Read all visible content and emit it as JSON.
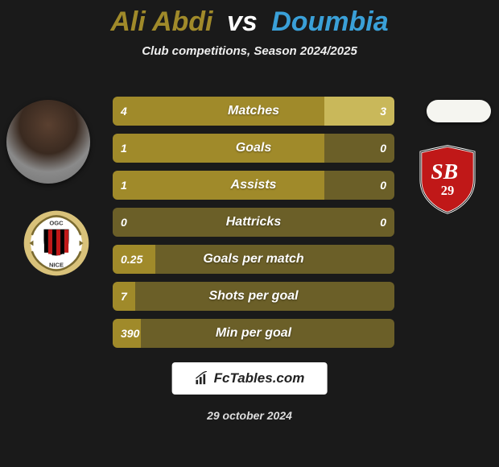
{
  "title": {
    "player1": "Ali Abdi",
    "vs": "vs",
    "player2": "Doumbia",
    "player1_color": "#a08a2a",
    "player2_color": "#3aa0d8"
  },
  "subtitle": "Club competitions, Season 2024/2025",
  "bars": {
    "left_color": "#a08a2a",
    "right_color": "#c9b85a",
    "left_empty_color": "#6b5f28",
    "right_empty_color": "#6b5f28",
    "height": 36,
    "gap": 10,
    "border_radius": 6,
    "label_fontsize": 16,
    "value_fontsize": 14,
    "rows": [
      {
        "label": "Matches",
        "left_val": "4",
        "right_val": "3",
        "left_frac": 0.75,
        "right_frac": 0.25
      },
      {
        "label": "Goals",
        "left_val": "1",
        "right_val": "0",
        "left_frac": 0.75,
        "right_frac": 0.0
      },
      {
        "label": "Assists",
        "left_val": "1",
        "right_val": "0",
        "left_frac": 0.75,
        "right_frac": 0.0
      },
      {
        "label": "Hattricks",
        "left_val": "0",
        "right_val": "0",
        "left_frac": 0.0,
        "right_frac": 0.0
      },
      {
        "label": "Goals per match",
        "left_val": "0.25",
        "right_val": "",
        "left_frac": 0.15,
        "right_frac": 0.0
      },
      {
        "label": "Shots per goal",
        "left_val": "7",
        "right_val": "",
        "left_frac": 0.08,
        "right_frac": 0.0
      },
      {
        "label": "Min per goal",
        "left_val": "390",
        "right_val": "",
        "left_frac": 0.1,
        "right_frac": 0.0
      }
    ]
  },
  "watermark": {
    "text": "FcTables.com"
  },
  "date": "29 october 2024",
  "crest_right": {
    "shield_color": "#c01818",
    "border_color": "#ffffff",
    "text": "SB",
    "sub": "29"
  },
  "crest_left": {
    "circle_outer": "#d9c27a",
    "circle_inner": "#ffffff",
    "text_top": "OGC",
    "text_bottom": "NICE",
    "stripes": [
      "#000000",
      "#c01818"
    ]
  }
}
